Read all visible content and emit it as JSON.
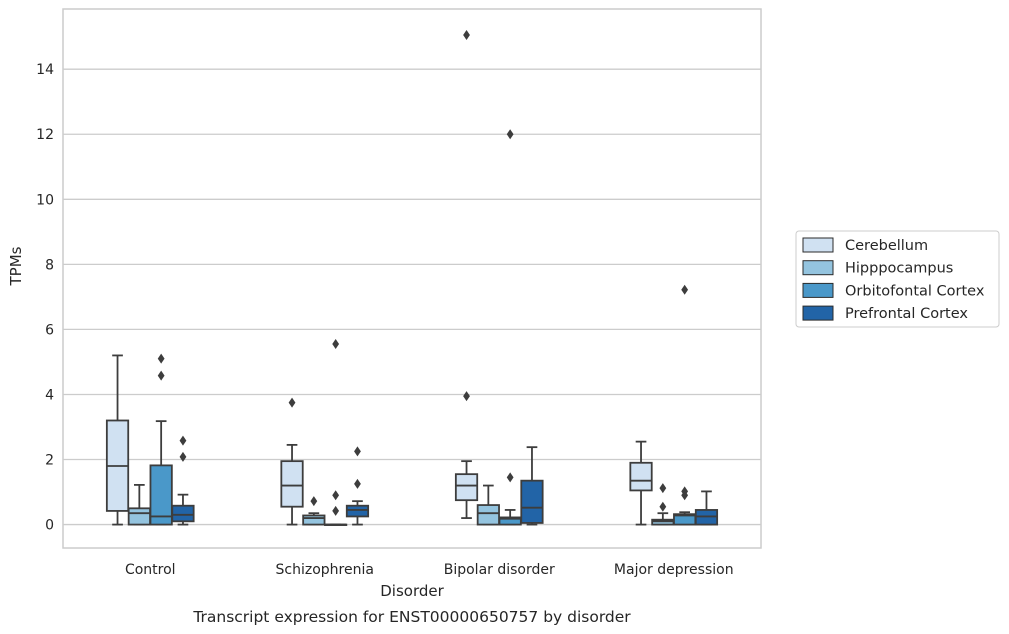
{
  "caption": "Transcript expression for ENST00000650757 by disorder",
  "chart_data": {
    "type": "boxplot",
    "title": "",
    "xlabel": "Disorder",
    "ylabel": "TPMs",
    "ylim": [
      -0.72,
      15.85
    ],
    "yticks": [
      0,
      2,
      4,
      6,
      8,
      10,
      12,
      14
    ],
    "grid": "horizontal",
    "legend_position": "right",
    "categories": [
      "Control",
      "Schizophrenia",
      "Bipolar disorder",
      "Major depression"
    ],
    "series": [
      {
        "name": "Cerebellum",
        "color": "#d0e1f2",
        "boxes": [
          {
            "category": "Control",
            "whisker_low": 0.0,
            "q1": 0.42,
            "median": 1.8,
            "q3": 3.2,
            "whisker_high": 5.2,
            "outliers": []
          },
          {
            "category": "Schizophrenia",
            "whisker_low": 0.0,
            "q1": 0.55,
            "median": 1.2,
            "q3": 1.95,
            "whisker_high": 2.45,
            "outliers": [
              3.75
            ]
          },
          {
            "category": "Bipolar disorder",
            "whisker_low": 0.2,
            "q1": 0.75,
            "median": 1.2,
            "q3": 1.55,
            "whisker_high": 1.95,
            "outliers": [
              3.95,
              15.05
            ]
          },
          {
            "category": "Major depression",
            "whisker_low": 0.0,
            "q1": 1.05,
            "median": 1.35,
            "q3": 1.9,
            "whisker_high": 2.55,
            "outliers": []
          }
        ]
      },
      {
        "name": "Hipppocampus",
        "color": "#94c4df",
        "boxes": [
          {
            "category": "Control",
            "whisker_low": 0.0,
            "q1": 0.0,
            "median": 0.35,
            "q3": 0.5,
            "whisker_high": 1.22,
            "outliers": []
          },
          {
            "category": "Schizophrenia",
            "whisker_low": 0.0,
            "q1": 0.0,
            "median": 0.2,
            "q3": 0.28,
            "whisker_high": 0.35,
            "outliers": [
              0.72
            ]
          },
          {
            "category": "Bipolar disorder",
            "whisker_low": 0.0,
            "q1": 0.0,
            "median": 0.35,
            "q3": 0.6,
            "whisker_high": 1.2,
            "outliers": []
          },
          {
            "category": "Major depression",
            "whisker_low": 0.0,
            "q1": 0.0,
            "median": 0.1,
            "q3": 0.15,
            "whisker_high": 0.35,
            "outliers": [
              0.55,
              1.12
            ]
          }
        ]
      },
      {
        "name": "Orbitofontal Cortex",
        "color": "#4a98c9",
        "boxes": [
          {
            "category": "Control",
            "whisker_low": 0.0,
            "q1": 0.0,
            "median": 0.25,
            "q3": 1.82,
            "whisker_high": 3.18,
            "outliers": [
              4.58,
              5.1
            ]
          },
          {
            "category": "Schizophrenia",
            "whisker_low": 0.0,
            "q1": 0.0,
            "median": 0.0,
            "q3": 0.0,
            "whisker_high": 0.0,
            "outliers": [
              0.42,
              0.9,
              5.55
            ]
          },
          {
            "category": "Bipolar disorder",
            "whisker_low": 0.0,
            "q1": 0.0,
            "median": 0.18,
            "q3": 0.22,
            "whisker_high": 0.45,
            "outliers": [
              1.45,
              12.0
            ]
          },
          {
            "category": "Major depression",
            "whisker_low": 0.0,
            "q1": 0.0,
            "median": 0.28,
            "q3": 0.32,
            "whisker_high": 0.38,
            "outliers": [
              0.9,
              1.02,
              7.22
            ]
          }
        ]
      },
      {
        "name": "Prefrontal Cortex",
        "color": "#2264a7",
        "boxes": [
          {
            "category": "Control",
            "whisker_low": 0.0,
            "q1": 0.1,
            "median": 0.3,
            "q3": 0.58,
            "whisker_high": 0.92,
            "outliers": [
              2.08,
              2.58
            ]
          },
          {
            "category": "Schizophrenia",
            "whisker_low": 0.0,
            "q1": 0.25,
            "median": 0.45,
            "q3": 0.58,
            "whisker_high": 0.72,
            "outliers": [
              1.25,
              2.25
            ]
          },
          {
            "category": "Bipolar disorder",
            "whisker_low": 0.0,
            "q1": 0.05,
            "median": 0.52,
            "q3": 1.35,
            "whisker_high": 2.38,
            "outliers": []
          },
          {
            "category": "Major depression",
            "whisker_low": 0.0,
            "q1": 0.0,
            "median": 0.25,
            "q3": 0.45,
            "whisker_high": 1.02,
            "outliers": []
          }
        ]
      }
    ]
  }
}
